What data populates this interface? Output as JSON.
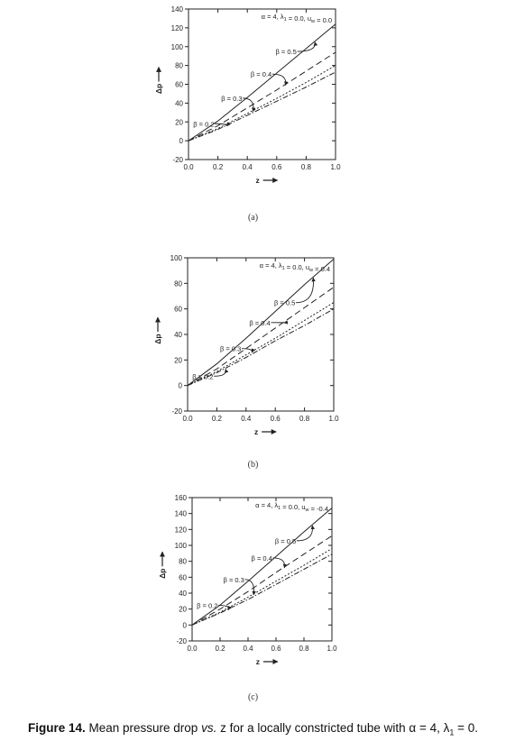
{
  "chart_data": [
    {
      "type": "line",
      "panel_label": "(a)",
      "annotation": "α = 4, λ₁ = 0.0, uw = 0.0",
      "annotation_parts": {
        "alpha": "α = 4, ",
        "lambda_sym": "λ",
        "lambda_sub": "1",
        "lambda_val": " = 0.0, ",
        "u_sym": "u",
        "u_sub": "w",
        "u_val": " = 0.0"
      },
      "xlabel": "z",
      "ylabel": "Δp",
      "xlim": [
        0.0,
        1.0
      ],
      "ylim": [
        -20,
        140
      ],
      "xticks": [
        "0.0",
        "0.2",
        "0.4",
        "0.6",
        "0.8",
        "1.0"
      ],
      "yticks": [
        "-20",
        "0",
        "20",
        "40",
        "60",
        "80",
        "100",
        "120",
        "140"
      ],
      "x": [
        0.0,
        0.2,
        0.4,
        0.6,
        0.8,
        1.0
      ],
      "series": [
        {
          "name": "β = 0.5",
          "values": [
            0,
            21,
            46,
            72,
            98,
            124
          ]
        },
        {
          "name": "β = 0.4",
          "values": [
            0,
            16,
            35,
            54,
            74,
            94
          ]
        },
        {
          "name": "β = 0.3",
          "values": [
            0,
            13,
            29,
            45,
            62,
            80
          ]
        },
        {
          "name": "β = 0.2",
          "values": [
            0,
            12,
            27,
            42,
            57,
            73
          ]
        }
      ]
    },
    {
      "type": "line",
      "panel_label": "(b)",
      "annotation": "α = 4, λ₁ = 0.0, uw = 0.4",
      "annotation_parts": {
        "alpha": "α = 4, ",
        "lambda_sym": "λ",
        "lambda_sub": "1",
        "lambda_val": " = 0.0, ",
        "u_sym": "u",
        "u_sub": "w",
        "u_val": " = 0.4"
      },
      "xlabel": "z",
      "ylabel": "Δp",
      "xlim": [
        0.0,
        1.0
      ],
      "ylim": [
        -20,
        100
      ],
      "xticks": [
        "0.0",
        "0.2",
        "0.4",
        "0.6",
        "0.8",
        "1.0"
      ],
      "yticks": [
        "-20",
        "0",
        "20",
        "40",
        "60",
        "80",
        "100"
      ],
      "x": [
        0.0,
        0.2,
        0.4,
        0.6,
        0.8,
        1.0
      ],
      "series": [
        {
          "name": "β = 0.5",
          "values": [
            0,
            17,
            37,
            58,
            79,
            99
          ]
        },
        {
          "name": "β = 0.4",
          "values": [
            0,
            13,
            29,
            45,
            61,
            77
          ]
        },
        {
          "name": "β = 0.3",
          "values": [
            0,
            11,
            24,
            37,
            51,
            65
          ]
        },
        {
          "name": "β = 0.2",
          "values": [
            0,
            10,
            22,
            35,
            47,
            60
          ]
        }
      ]
    },
    {
      "type": "line",
      "panel_label": "(c)",
      "annotation": "α = 4, λ₁ = 0.0, uw = -0.4",
      "annotation_parts": {
        "alpha": "α = 4, ",
        "lambda_sym": "λ",
        "lambda_sub": "1",
        "lambda_val": " = 0.0, ",
        "u_sym": "u",
        "u_sub": "w",
        "u_val": " = -0.4"
      },
      "xlabel": "z",
      "ylabel": "Δp",
      "xlim": [
        0.0,
        1.0
      ],
      "ylim": [
        -20,
        160
      ],
      "xticks": [
        "0.0",
        "0.2",
        "0.4",
        "0.6",
        "0.8",
        "1.0"
      ],
      "yticks": [
        "-20",
        "0",
        "20",
        "40",
        "60",
        "80",
        "100",
        "120",
        "140",
        "160"
      ],
      "x": [
        0.0,
        0.2,
        0.4,
        0.6,
        0.8,
        1.0
      ],
      "series": [
        {
          "name": "β = 0.5",
          "values": [
            0,
            25,
            55,
            86,
            117,
            147
          ]
        },
        {
          "name": "β = 0.4",
          "values": [
            0,
            20,
            42,
            66,
            89,
            112
          ]
        },
        {
          "name": "β = 0.3",
          "values": [
            0,
            16,
            35,
            55,
            75,
            96
          ]
        },
        {
          "name": "β = 0.2",
          "values": [
            0,
            15,
            32,
            51,
            70,
            89
          ]
        }
      ]
    }
  ],
  "caption": {
    "label": "Figure 14.",
    "text1": " Mean pressure drop ",
    "vs": "vs.",
    "text2": " z for a locally constricted tube with α = 4, λ",
    "sub": "1",
    "text3": " = 0."
  },
  "colors": {
    "line": "#222222",
    "axis": "#222222"
  }
}
